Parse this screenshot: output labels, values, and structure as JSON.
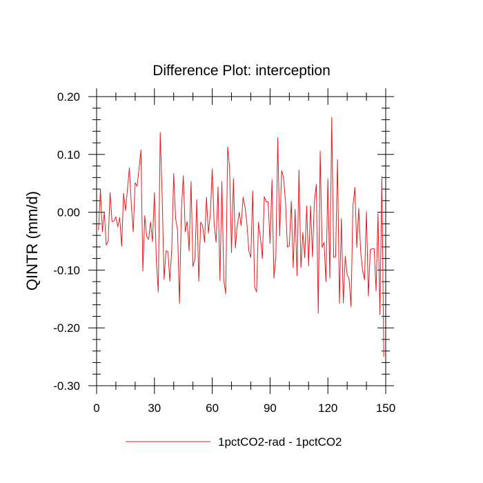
{
  "chart_data": {
    "type": "line",
    "title": "Difference Plot: interception",
    "ylabel": "QINTR  (mm/d)",
    "xlabel": "",
    "xlim": [
      0,
      150
    ],
    "ylim": [
      -0.3,
      0.2
    ],
    "x_ticks": [
      0,
      30,
      60,
      90,
      120,
      150
    ],
    "x_tick_labels": [
      "0",
      "30",
      "60",
      "90",
      "120",
      "150"
    ],
    "y_ticks": [
      -0.3,
      -0.2,
      -0.1,
      0.0,
      0.1,
      0.2
    ],
    "y_tick_labels": [
      "-0.30",
      "-0.20",
      "-0.10",
      "0.00",
      "0.10",
      "0.20"
    ],
    "grid": false,
    "legend_position": "bottom",
    "series": [
      {
        "name": "1pctCO2-rad - 1pctCO2",
        "color": "#e41a1c",
        "x_start": 1,
        "x_step": 1,
        "values": [
          -0.031,
          0.04,
          -0.034,
          0.0,
          -0.057,
          -0.05,
          0.034,
          -0.016,
          -0.015,
          -0.008,
          -0.025,
          -0.009,
          -0.059,
          0.033,
          0.003,
          0.039,
          0.077,
          0.014,
          -0.034,
          0.051,
          0.045,
          0.075,
          0.108,
          -0.102,
          -0.006,
          -0.042,
          -0.047,
          -0.017,
          -0.051,
          0.034,
          -0.084,
          -0.138,
          0.138,
          0.031,
          -0.116,
          -0.067,
          -0.068,
          -0.119,
          -0.063,
          0.067,
          -0.011,
          -0.031,
          -0.158,
          0.005,
          0.063,
          -0.034,
          -0.016,
          -0.067,
          0.053,
          -0.094,
          -0.081,
          0.022,
          -0.119,
          -0.017,
          -0.023,
          -0.052,
          0.026,
          -0.036,
          -0.004,
          0.075,
          -0.021,
          -0.052,
          0.044,
          -0.118,
          0.053,
          -0.117,
          -0.141,
          0.113,
          0.077,
          -0.07,
          0.058,
          -0.062,
          -0.023,
          0.0,
          -0.023,
          0.026,
          0.009,
          -0.02,
          -0.067,
          -0.078,
          0.037,
          -0.129,
          -0.138,
          -0.017,
          -0.044,
          -0.08,
          0.027,
          0.018,
          0.018,
          -0.054,
          0.056,
          -0.114,
          -0.079,
          0.129,
          -0.041,
          0.072,
          0.06,
          0.018,
          -0.06,
          -0.058,
          0.019,
          -0.096,
          0.005,
          -0.11,
          0.073,
          -0.096,
          -0.035,
          -0.079,
          0.011,
          -0.093,
          0.011,
          -0.077,
          0.02,
          0.048,
          -0.175,
          0.106,
          -0.061,
          -0.052,
          -0.12,
          0.058,
          -0.114,
          0.164,
          -0.078,
          -0.077,
          0.091,
          -0.158,
          -0.011,
          -0.157,
          -0.076,
          -0.108,
          -0.115,
          -0.163,
          0.011,
          0.043,
          -0.061,
          0.007,
          -0.067,
          -0.1,
          -0.117,
          0.001,
          -0.145,
          -0.065,
          -0.063,
          -0.063,
          -0.136,
          -0.002,
          -0.177,
          0.062,
          -0.25
        ]
      }
    ]
  }
}
